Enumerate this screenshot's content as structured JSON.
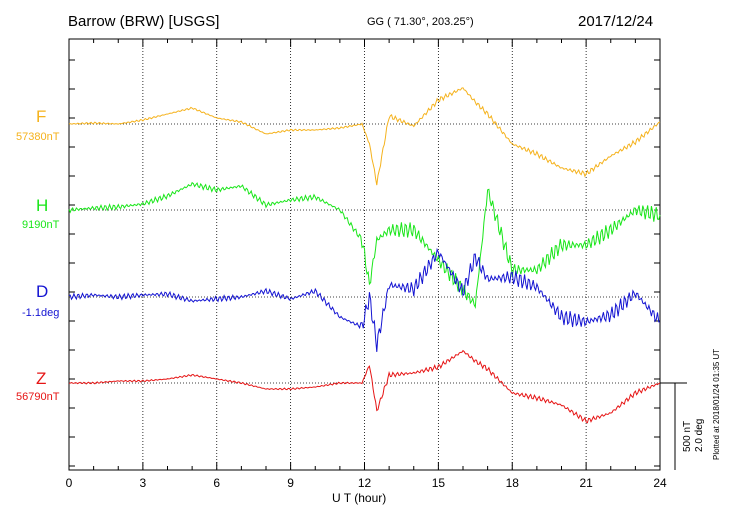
{
  "header": {
    "station": "Barrow (BRW)  [USGS]",
    "coords": "GG ( 71.30°, 203.25°)",
    "date": "2017/12/24"
  },
  "components": [
    {
      "name": "F",
      "baseline": "57380nT",
      "color": "#f5b21c"
    },
    {
      "name": "H",
      "baseline": "9190nT",
      "color": "#19e619"
    },
    {
      "name": "D",
      "baseline": "-1.1deg",
      "color": "#1414d2"
    },
    {
      "name": "Z",
      "baseline": "56790nT",
      "color": "#e61414"
    }
  ],
  "scale": {
    "nt": "500 nT",
    "deg": "2.0 deg"
  },
  "credit": "Plotted at 2018/01/24 01:35 UT",
  "chart_data": {
    "type": "line",
    "xlabel": "U T (hour)",
    "ylabel": "",
    "xlim": [
      0,
      24
    ],
    "xticks": [
      0,
      3,
      6,
      9,
      12,
      15,
      18,
      21,
      24
    ],
    "grid": true,
    "x": [
      0,
      1,
      2,
      3,
      4,
      5,
      6,
      7,
      8,
      9,
      10,
      11,
      11.9,
      12.2,
      12.5,
      13,
      14,
      15,
      16,
      16.5,
      17,
      18,
      19,
      20,
      21,
      22,
      23,
      24
    ],
    "series": [
      {
        "name": "F",
        "values": [
          0,
          1,
          0,
          4,
          10,
          16,
          6,
          2,
          -10,
          -6,
          -6,
          -4,
          0,
          -20,
          -60,
          8,
          -2,
          24,
          36,
          22,
          10,
          -20,
          -30,
          -44,
          -50,
          -32,
          -18,
          2
        ]
      },
      {
        "name": "H",
        "values": [
          0,
          2,
          3,
          6,
          14,
          26,
          20,
          24,
          5,
          10,
          13,
          0,
          -30,
          -75,
          -30,
          -20,
          -20,
          -50,
          -80,
          -95,
          20,
          -60,
          -60,
          -35,
          -35,
          -20,
          0,
          -5
        ]
      },
      {
        "name": "D",
        "values": [
          0,
          2,
          0,
          2,
          3,
          -4,
          -2,
          0,
          6,
          -2,
          6,
          -20,
          -30,
          0,
          -48,
          12,
          8,
          45,
          5,
          40,
          18,
          20,
          10,
          -20,
          -25,
          -18,
          4,
          -25
        ]
      },
      {
        "name": "Z",
        "values": [
          0,
          0,
          2,
          2,
          4,
          8,
          4,
          0,
          -6,
          -6,
          -4,
          0,
          0,
          18,
          -28,
          8,
          10,
          16,
          32,
          22,
          14,
          -10,
          -15,
          -22,
          -38,
          -30,
          -10,
          0
        ]
      }
    ]
  }
}
